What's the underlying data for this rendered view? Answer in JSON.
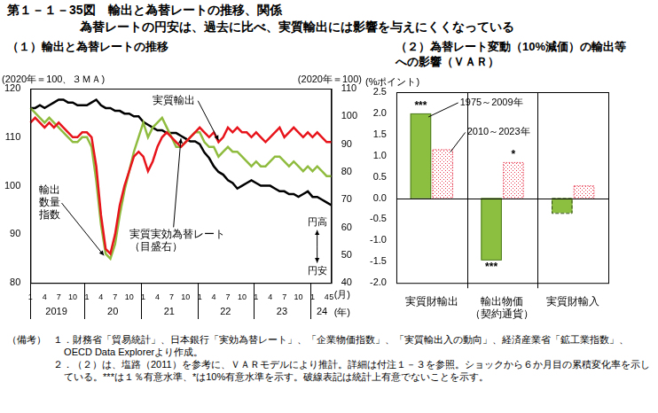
{
  "title": "第１－１－35図　輸出と為替レートの推移、関係",
  "subtitle": "為替レートの円安は、過去に比べ、実質輸出には影響を与えにくくなっている",
  "notes_header": "（備考）",
  "notes": [
    "１．財務省「貿易統計」、日本銀行「実効為替レート」、「企業物価指数」、「実質輸出入の動向」、経済産業省「鉱工業指数」、OECD Data Explorerより作成。",
    "２．（２）は、塩路（2011）を参考に、ＶＡＲモデルにより推計。詳細は付注１－３を参照。ショックから６か月目の累積変化率を示している。***は１％有意水準、*は10%有意水準を示す。破線表記は統計上有意でないことを示す。"
  ],
  "chart_data": [
    {
      "type": "line",
      "title": "（１）輸出と為替レートの推移",
      "ylabel": "(2020年＝100、３ＭＡ)",
      "y2label": "(2020年＝100)",
      "annotations": {
        "yen_strong": "円高",
        "yen_weak": "円安",
        "month_unit": "(月)",
        "year_unit": "(年)"
      },
      "categories": [
        "1",
        null,
        null,
        "4",
        null,
        null,
        "7",
        null,
        null,
        "10",
        null,
        null,
        "1",
        null,
        null,
        "4",
        null,
        null,
        "7",
        null,
        null,
        "10",
        null,
        null,
        "1",
        null,
        null,
        "4",
        null,
        null,
        "7",
        null,
        null,
        "10",
        null,
        null,
        "1",
        null,
        null,
        "4",
        null,
        null,
        "7",
        null,
        null,
        "10",
        null,
        null,
        "1",
        null,
        null,
        "4",
        null,
        null,
        "7",
        null,
        null,
        "10",
        null,
        null,
        "1",
        null,
        null,
        "4",
        "5"
      ],
      "category_groups": [
        {
          "label": "2019",
          "count": 12
        },
        {
          "label": "20",
          "count": 12
        },
        {
          "label": "21",
          "count": 12
        },
        {
          "label": "22",
          "count": 12
        },
        {
          "label": "23",
          "count": 12
        },
        {
          "label": "24",
          "count": 5
        }
      ],
      "series": [
        {
          "name": "実質輸出",
          "color": "#e8141c",
          "axis": "y",
          "values": [
            113,
            114,
            113,
            112,
            113,
            112,
            113,
            112,
            111,
            110,
            110,
            111,
            111,
            110,
            104,
            94,
            87,
            86,
            90,
            96,
            100,
            103,
            106,
            107,
            106,
            103,
            105,
            108,
            110,
            111,
            110,
            109,
            108,
            109,
            110,
            111,
            112,
            111,
            110,
            111,
            109,
            110,
            112,
            111,
            112,
            111,
            111,
            110,
            111,
            110,
            109,
            110,
            111,
            112,
            110,
            111,
            112,
            111,
            110,
            111,
            110,
            111,
            110,
            109,
            109
          ]
        },
        {
          "name": "輸出数量指数",
          "color": "#8fbc3f",
          "axis": "y",
          "values": [
            116,
            115,
            114,
            113,
            114,
            113,
            112,
            111,
            110,
            109,
            109,
            110,
            110,
            108,
            101,
            92,
            86,
            85,
            88,
            94,
            99,
            103,
            107,
            110,
            113,
            110,
            112,
            113,
            114,
            112,
            110,
            108,
            108,
            109,
            110,
            111,
            111,
            109,
            108,
            108,
            106,
            107,
            108,
            107,
            107,
            106,
            105,
            104,
            105,
            104,
            104,
            105,
            106,
            106,
            105,
            104,
            105,
            104,
            103,
            104,
            103,
            104,
            103,
            102,
            102
          ]
        },
        {
          "name": "実質実効為替レート（目盛右）",
          "color": "#000000",
          "axis": "y2",
          "values": [
            103,
            103,
            104,
            103,
            104,
            105,
            106,
            106,
            105,
            105,
            104,
            104,
            104,
            105,
            106,
            104,
            103,
            103,
            102,
            102,
            101,
            101,
            100,
            100,
            98,
            97,
            96,
            95,
            95,
            94,
            94,
            94,
            93,
            92,
            91,
            91,
            90,
            87,
            85,
            82,
            80,
            79,
            77,
            76,
            74,
            75,
            76,
            77,
            76,
            75,
            75,
            75,
            74,
            73,
            73,
            72,
            72,
            71,
            72,
            73,
            71,
            71,
            70,
            69,
            68
          ]
        }
      ],
      "ylim": [
        80,
        120
      ],
      "yticks": [
        80,
        90,
        100,
        110,
        120
      ],
      "y2lim": [
        40,
        110
      ],
      "y2ticks": [
        40,
        50,
        60,
        70,
        80,
        90,
        100,
        110
      ],
      "grid": false
    },
    {
      "type": "bar",
      "title": "（２）為替レート変動（10%減価）の輸出等への影響（ＶＡＲ）",
      "ylabel": "(%ポイント)",
      "categories": [
        "実質財輸出",
        "輸出物価（契約通貨）",
        "実質財輸入"
      ],
      "series": [
        {
          "name": "1975～2009年",
          "color": "#8cbf3f",
          "line_style": "solid",
          "values": [
            2.0,
            -1.45,
            -0.35
          ],
          "significance": [
            "***",
            "***",
            null
          ]
        },
        {
          "name": "2010～2023年",
          "color": "#e83f55",
          "line_style": "dotted",
          "values": [
            1.15,
            0.85,
            0.3
          ],
          "significance": [
            null,
            "*",
            null
          ]
        }
      ],
      "ylim": [
        -2,
        2.5
      ],
      "yticks": [
        2.5,
        {
          "value": 2,
          "label": "2.0"
        },
        1.5,
        {
          "value": 1,
          "label": "1.0"
        },
        0.5,
        {
          "value": 0,
          "label": "0.0"
        },
        -0.5,
        {
          "value": -1,
          "label": "-1.0"
        },
        -1.5,
        {
          "value": -2,
          "label": "-2.0"
        }
      ],
      "grid": false
    }
  ]
}
